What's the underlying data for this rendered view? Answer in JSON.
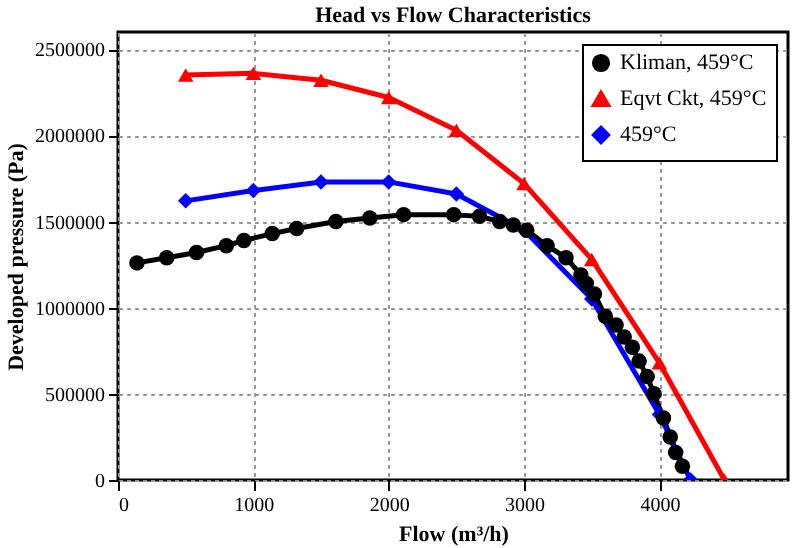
{
  "chart_data": {
    "type": "line",
    "title": "Head vs Flow Characteristics",
    "xlabel": "Flow (m³/h)",
    "ylabel": "Developed pressure (Pa)",
    "xlim": [
      0,
      4950
    ],
    "xticks": [
      0,
      1000,
      2000,
      3000,
      4000
    ],
    "ylim": [
      0,
      2600000
    ],
    "yticks": [
      0,
      500000,
      1000000,
      1500000,
      2000000,
      2500000
    ],
    "grid": true,
    "legend": "top right",
    "line_style": "solid",
    "series": [
      {
        "name": "Kliman, 459°C",
        "color": "#000000",
        "marker": "circle",
        "x": [
          140,
          360,
          580,
          800,
          930,
          1140,
          1320,
          1610,
          1860,
          2110,
          2480,
          2670,
          2820,
          2920,
          3020,
          3170,
          3310,
          3420,
          3460,
          3520,
          3600,
          3680,
          3740,
          3800,
          3850,
          3910,
          3960,
          4030,
          4080,
          4120,
          4170
        ],
        "values": [
          1260000,
          1290000,
          1320000,
          1360000,
          1390000,
          1430000,
          1460000,
          1500000,
          1520000,
          1540000,
          1540000,
          1530000,
          1500000,
          1480000,
          1450000,
          1360000,
          1290000,
          1190000,
          1140000,
          1080000,
          950000,
          900000,
          830000,
          770000,
          690000,
          600000,
          500000,
          360000,
          250000,
          160000,
          80000
        ]
      },
      {
        "name": "Eqvt Ckt, 459°C",
        "color": "#ff0000",
        "marker": "triangle",
        "x": [
          500,
          1000,
          1500,
          2000,
          2500,
          3000,
          3500,
          4000,
          4480
        ],
        "values": [
          2350000,
          2360000,
          2320000,
          2220000,
          2030000,
          1720000,
          1280000,
          680000,
          0
        ]
      },
      {
        "name": "459°C",
        "color": "#0000ff",
        "marker": "diamond",
        "x": [
          500,
          1000,
          1500,
          2000,
          2500,
          3000,
          3500,
          4000,
          4230
        ],
        "values": [
          1620000,
          1680000,
          1730000,
          1730000,
          1660000,
          1450000,
          1050000,
          380000,
          0
        ]
      }
    ]
  }
}
